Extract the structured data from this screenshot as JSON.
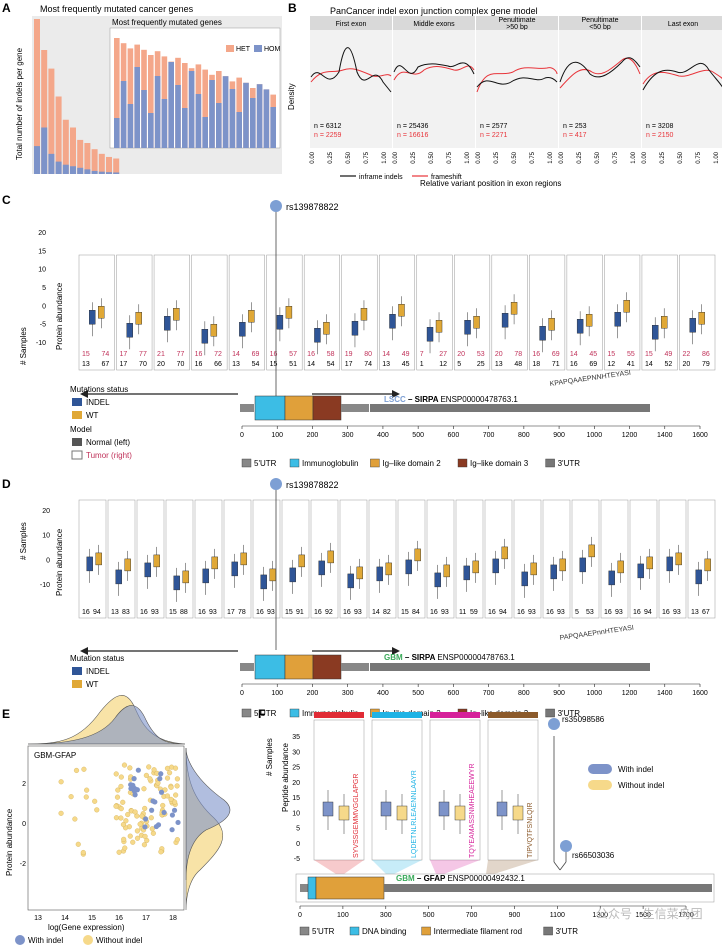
{
  "panels": {
    "A": {
      "letter": "A",
      "title": "Most frequently mutated cancer genes",
      "ylabel": "Total number of indels per gene",
      "inset_title": "Most frequently mutated genes",
      "legend": [
        {
          "label": "HET",
          "color": "#f4a78a"
        },
        {
          "label": "HOM",
          "color": "#7d93c9"
        }
      ]
    },
    "B": {
      "letter": "B",
      "title": "PanCancer indel exon junction complex gene model",
      "ylabel": "Density",
      "xlabel": "Relative variant position in exon regions",
      "facets": [
        "First exon",
        "Middle exons",
        "Penultimate\n>50 bp",
        "Penultimate\n<50 bp",
        "Last exon"
      ],
      "n_black": [
        "n = 6312",
        "n = 25436",
        "n = 2577",
        "n = 253",
        "n = 3208"
      ],
      "n_red": [
        "n = 2259",
        "n = 16616",
        "n = 2271",
        "n = 417",
        "n = 2150"
      ],
      "ticks": [
        "0.00",
        "0.25",
        "0.50",
        "0.75",
        "1.00"
      ],
      "legend": [
        {
          "label": "inframe indels",
          "color": "#111111"
        },
        {
          "label": "frameshift",
          "color": "#e8343a"
        }
      ]
    },
    "C": {
      "letter": "C",
      "ylabel": "Protein abundance",
      "ylabel2": "# Samples",
      "yticks": [
        "20",
        "15",
        "10",
        "5",
        "0",
        "-5",
        "-10"
      ],
      "snp": "rs139878822",
      "gene_label": "LSCC – SIRPA ENSP00000478763.1",
      "gene_label_colored": "LSCC",
      "gene_label_rest": " – SIRPA ",
      "gene_id": "ENSP00000478763.1",
      "peptide_note": "KPAPQAAEPNNHTEYASI",
      "legend_title": "Mutations status",
      "legend_items": [
        {
          "label": "INDEL",
          "color": "#2f5597"
        },
        {
          "label": "WT",
          "color": "#e0a836"
        }
      ],
      "model_title": "Model",
      "model_items": [
        {
          "label": "Normal (left)",
          "color": "#555555"
        },
        {
          "label": "Tumor (right)",
          "color": "#c0325a"
        }
      ],
      "counts_red": [
        [
          "15",
          "74"
        ],
        [
          "17",
          "77"
        ],
        [
          "21",
          "77"
        ],
        [
          "16",
          "72"
        ],
        [
          "14",
          "69"
        ],
        [
          "16",
          "57"
        ],
        [
          "16",
          "58"
        ],
        [
          "19",
          "80"
        ],
        [
          "14",
          "49"
        ],
        [
          "7",
          "27"
        ],
        [
          "20",
          "53"
        ],
        [
          "20",
          "78"
        ],
        [
          "16",
          "69"
        ],
        [
          "14",
          "45"
        ],
        [
          "15",
          "55"
        ],
        [
          "15",
          "49"
        ],
        [
          "22",
          "86"
        ]
      ],
      "counts_black": [
        [
          "13",
          "67"
        ],
        [
          "17",
          "70"
        ],
        [
          "20",
          "70"
        ],
        [
          "16",
          "66"
        ],
        [
          "13",
          "54"
        ],
        [
          "15",
          "51"
        ],
        [
          "14",
          "54"
        ],
        [
          "17",
          "74"
        ],
        [
          "13",
          "45"
        ],
        [
          "1",
          "12"
        ],
        [
          "5",
          "25"
        ],
        [
          "13",
          "48"
        ],
        [
          "18",
          "71"
        ],
        [
          "16",
          "69"
        ],
        [
          "12",
          "41"
        ],
        [
          "14",
          "52"
        ],
        [
          "20",
          "79"
        ]
      ]
    },
    "D": {
      "letter": "D",
      "ylabel": "Protein abundance",
      "ylabel2": "# Samples",
      "yticks": [
        "20",
        "10",
        "0",
        "-10"
      ],
      "snp": "rs139878822",
      "gene_label_colored": "GBM",
      "gene_label_rest": " – SIRPA ",
      "gene_id": "ENSP00000478763.1",
      "peptide_note": "PAPQAAEPnnHTEYASI",
      "legend_title": "Mutation status",
      "legend_items": [
        {
          "label": "INDEL",
          "color": "#2f5597"
        },
        {
          "label": "WT",
          "color": "#e0a836"
        }
      ],
      "counts": [
        [
          "16",
          "94"
        ],
        [
          "13",
          "83"
        ],
        [
          "16",
          "93"
        ],
        [
          "15",
          "88"
        ],
        [
          "16",
          "93"
        ],
        [
          "17",
          "78"
        ],
        [
          "16",
          "93"
        ],
        [
          "15",
          "91"
        ],
        [
          "16",
          "92"
        ],
        [
          "16",
          "93"
        ],
        [
          "14",
          "82"
        ],
        [
          "15",
          "84"
        ],
        [
          "16",
          "93"
        ],
        [
          "11",
          "59"
        ],
        [
          "16",
          "94"
        ],
        [
          "16",
          "93"
        ],
        [
          "16",
          "93"
        ],
        [
          "5",
          "53"
        ],
        [
          "16",
          "93"
        ],
        [
          "16",
          "94"
        ],
        [
          "16",
          "93"
        ],
        [
          "13",
          "67"
        ]
      ]
    },
    "E": {
      "letter": "E",
      "plot_title": "GBM-GFAP",
      "ylabel": "Protein abundance",
      "xlabel": "log(Gene expression)",
      "xticks": [
        "13",
        "14",
        "15",
        "16",
        "17",
        "18"
      ],
      "yticks": [
        "2",
        "0",
        "-2"
      ],
      "legend": [
        {
          "label": "With indel",
          "color": "#7d93c9"
        },
        {
          "label": "Without indel",
          "color": "#f6d98a"
        }
      ]
    },
    "F": {
      "letter": "F",
      "ylabel": "Peptide abundance",
      "ylabel2": "# Samples",
      "yticks": [
        "35",
        "30",
        "25",
        "20",
        "15",
        "10",
        "5",
        "0",
        "-5"
      ],
      "peptides": [
        {
          "seq": "SYVSSGEMMVGGLAPGR",
          "color": "#e02b35"
        },
        {
          "seq": "LQDETNLRLEAENNLAAYR",
          "color": "#1fb3e5"
        },
        {
          "seq": "TQYEAMASSNMHEAEEWYR",
          "color": "#d6209a"
        },
        {
          "seq": "TIPVQTFSNLQIR",
          "color": "#8b5a2b"
        }
      ],
      "snp1": "rs35098586",
      "snp2": "rs66503036",
      "legend": [
        {
          "label": "With indel",
          "color": "#7d93c9"
        },
        {
          "label": "Without indel",
          "color": "#f6d98a"
        }
      ],
      "gene_label_colored": "GBM",
      "gene_label_rest": " – GFAP ",
      "gene_id": "ENSP00000492432.1"
    }
  },
  "domain_legend_CD": [
    {
      "label": "5'UTR",
      "color": "#888888"
    },
    {
      "label": "Immunoglobulin",
      "color": "#3cbde5"
    },
    {
      "label": "Ig–like domain 2",
      "color": "#e0a03a"
    },
    {
      "label": "Ig–like domain 3",
      "color": "#8a3a22"
    },
    {
      "label": "3'UTR",
      "color": "#777777"
    }
  ],
  "domain_legend_F": [
    {
      "label": "5'UTR",
      "color": "#888888"
    },
    {
      "label": "DNA binding",
      "color": "#3cbde5"
    },
    {
      "label": "Intermediate filament rod",
      "color": "#e0a03a"
    },
    {
      "label": "3'UTR",
      "color": "#777777"
    }
  ],
  "axis_CD": [
    "0",
    "100",
    "200",
    "300",
    "400",
    "500",
    "600",
    "700",
    "800",
    "900",
    "1000",
    "1200",
    "1400",
    "1600"
  ],
  "axis_F": [
    "0",
    "100",
    "300",
    "500",
    "700",
    "900",
    "1100",
    "1300",
    "1500",
    "1700"
  ],
  "watermark": "公众号 · 生信菜鸟团"
}
